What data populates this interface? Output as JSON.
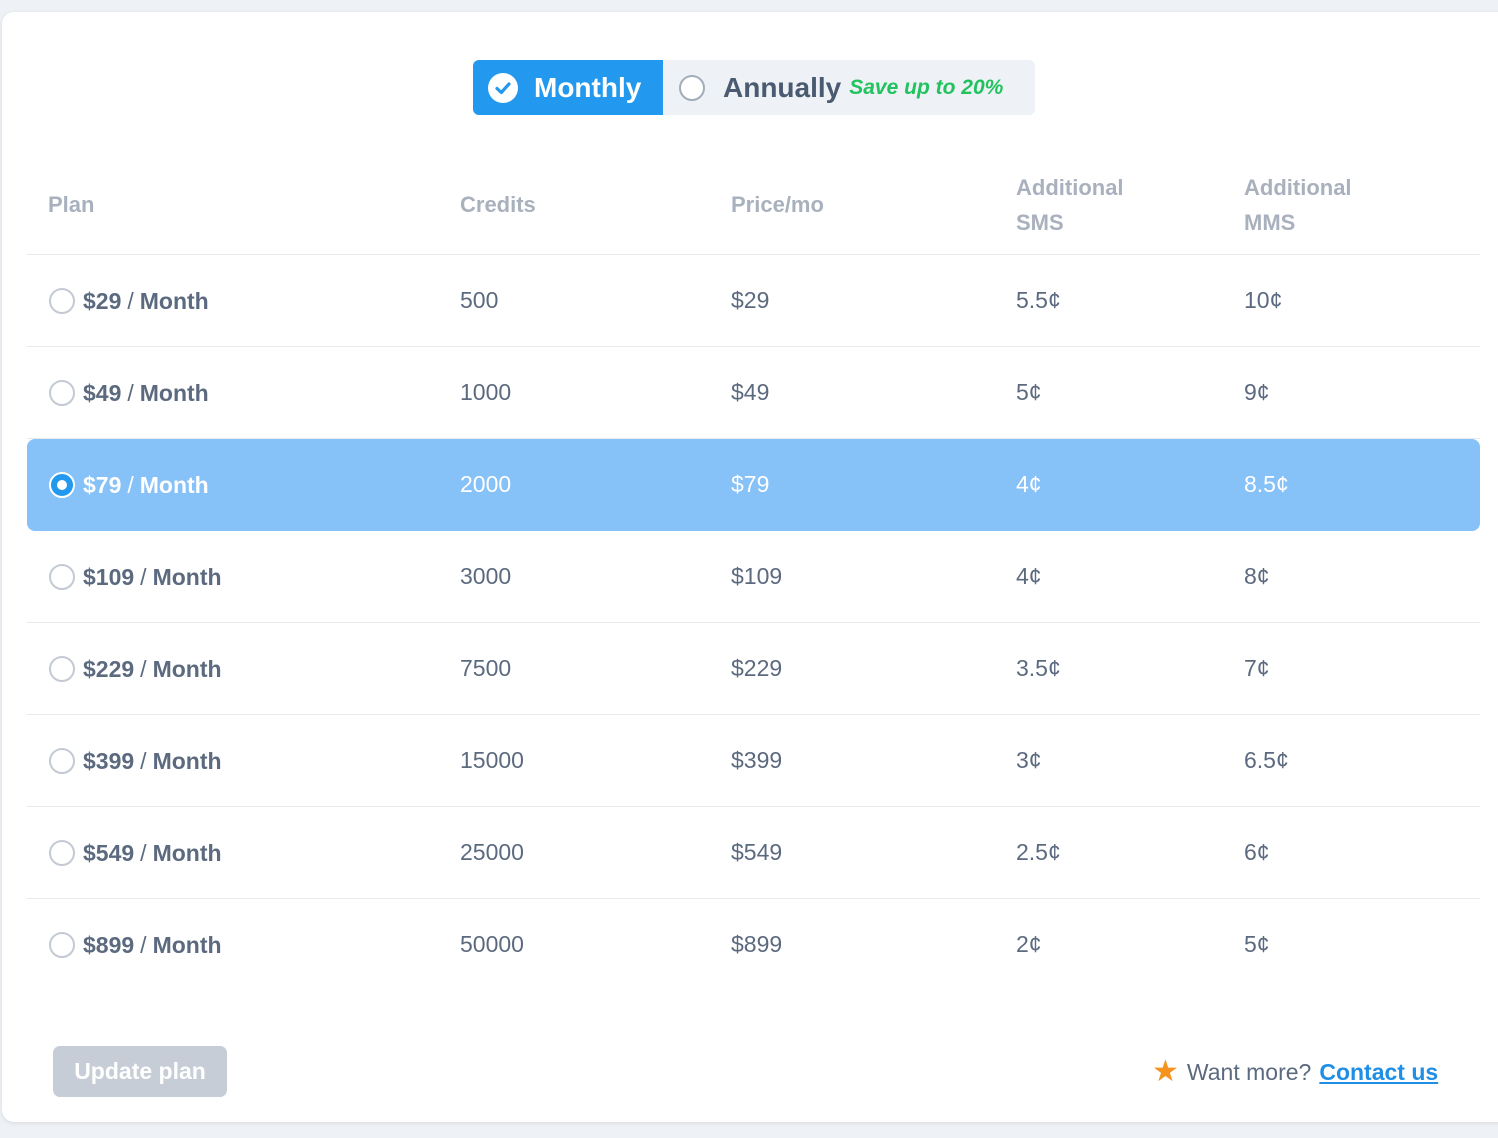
{
  "billing_toggle": {
    "monthly_label": "Monthly",
    "annually_label": "Annually",
    "save_text": "Save up to 20%",
    "selected": "Monthly"
  },
  "table": {
    "headers": {
      "plan": "Plan",
      "credits": "Credits",
      "price": "Price/mo",
      "sms_line1": "Additional",
      "sms_line2": "SMS",
      "mms_line1": "Additional",
      "mms_line2": "MMS"
    },
    "rows": [
      {
        "price_label": "$29",
        "unit": "Month",
        "credits": "500",
        "price": "$29",
        "sms": "5.5¢",
        "mms": "10¢",
        "selected": false
      },
      {
        "price_label": "$49",
        "unit": "Month",
        "credits": "1000",
        "price": "$49",
        "sms": "5¢",
        "mms": "9¢",
        "selected": false
      },
      {
        "price_label": "$79",
        "unit": "Month",
        "credits": "2000",
        "price": "$79",
        "sms": "4¢",
        "mms": "8.5¢",
        "selected": true
      },
      {
        "price_label": "$109",
        "unit": "Month",
        "credits": "3000",
        "price": "$109",
        "sms": "4¢",
        "mms": "8¢",
        "selected": false
      },
      {
        "price_label": "$229",
        "unit": "Month",
        "credits": "7500",
        "price": "$229",
        "sms": "3.5¢",
        "mms": "7¢",
        "selected": false
      },
      {
        "price_label": "$399",
        "unit": "Month",
        "credits": "15000",
        "price": "$399",
        "sms": "3¢",
        "mms": "6.5¢",
        "selected": false
      },
      {
        "price_label": "$549",
        "unit": "Month",
        "credits": "25000",
        "price": "$549",
        "sms": "2.5¢",
        "mms": "6¢",
        "selected": false
      },
      {
        "price_label": "$899",
        "unit": "Month",
        "credits": "50000",
        "price": "$899",
        "sms": "2¢",
        "mms": "5¢",
        "selected": false
      }
    ]
  },
  "footer": {
    "update_button": "Update plan",
    "want_more": "Want more?",
    "contact_link": "Contact us"
  },
  "icons": {
    "check": "check-circle-icon",
    "star": "star-icon"
  },
  "colors": {
    "primary": "#2299ee",
    "selected_row": "#86c1f7",
    "save_green": "#22c35e",
    "star_orange": "#f6931f",
    "disabled_button": "#c7cdd6"
  }
}
